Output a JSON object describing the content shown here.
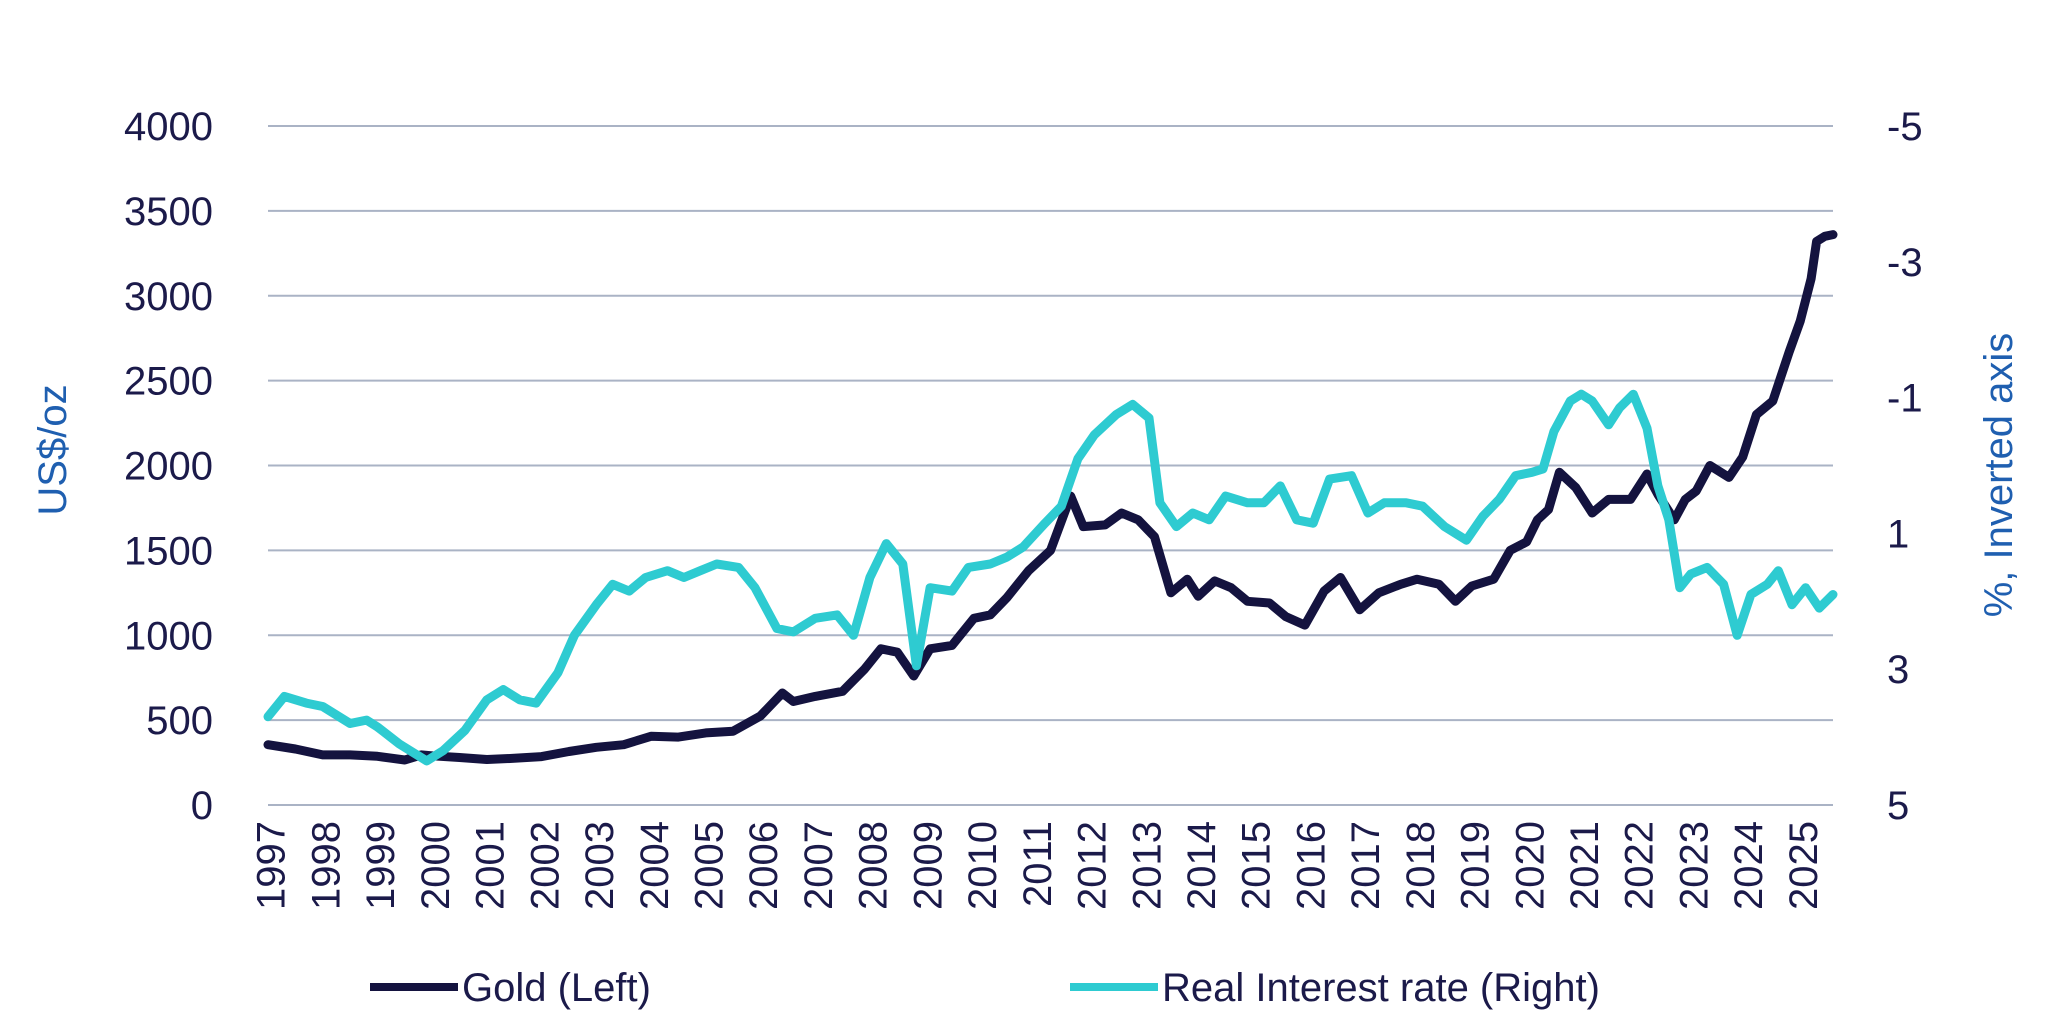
{
  "chart_data": {
    "type": "line",
    "title": "",
    "ylabel_left": "US$/oz",
    "ylabel_right": "%, Inverted axis",
    "ylim_left": [
      0,
      4000
    ],
    "yticks_left": [
      "4000",
      "3500",
      "3000",
      "2500",
      "2000",
      "1500",
      "1000",
      "500",
      "0"
    ],
    "ylim_right": [
      5,
      -5
    ],
    "yticks_right": [
      "-5",
      "-3",
      "-1",
      "1",
      "3",
      "5"
    ],
    "right_axis_inverted": true,
    "xlim": [
      1997.0,
      2025.6
    ],
    "x_tick_labels": [
      "1997",
      "1998",
      "1999",
      "2000",
      "2001",
      "2002",
      "2003",
      "2004",
      "2005",
      "2006",
      "2007",
      "2008",
      "2009",
      "2010",
      "2011",
      "2012",
      "2013",
      "2014",
      "2015",
      "2016",
      "2017",
      "2018",
      "2019",
      "2020",
      "2021",
      "2022",
      "2023",
      "2024",
      "2025"
    ],
    "grid": true,
    "legend_position": "bottom",
    "series": [
      {
        "name": "Gold (Left)",
        "axis": "left",
        "color": "#14133f",
        "points": [
          [
            1997.0,
            355
          ],
          [
            1997.5,
            330
          ],
          [
            1998.0,
            295
          ],
          [
            1998.5,
            295
          ],
          [
            1999.0,
            287
          ],
          [
            1999.5,
            265
          ],
          [
            1999.8,
            295
          ],
          [
            2000.0,
            290
          ],
          [
            2000.5,
            280
          ],
          [
            2001.0,
            268
          ],
          [
            2001.5,
            275
          ],
          [
            2002.0,
            285
          ],
          [
            2002.5,
            315
          ],
          [
            2003.0,
            340
          ],
          [
            2003.5,
            355
          ],
          [
            2004.0,
            405
          ],
          [
            2004.5,
            400
          ],
          [
            2005.0,
            425
          ],
          [
            2005.5,
            435
          ],
          [
            2006.0,
            525
          ],
          [
            2006.4,
            660
          ],
          [
            2006.6,
            610
          ],
          [
            2007.0,
            640
          ],
          [
            2007.5,
            670
          ],
          [
            2007.9,
            800
          ],
          [
            2008.2,
            920
          ],
          [
            2008.5,
            900
          ],
          [
            2008.8,
            760
          ],
          [
            2009.1,
            920
          ],
          [
            2009.5,
            940
          ],
          [
            2009.9,
            1100
          ],
          [
            2010.2,
            1120
          ],
          [
            2010.5,
            1220
          ],
          [
            2010.9,
            1380
          ],
          [
            2011.3,
            1500
          ],
          [
            2011.67,
            1820
          ],
          [
            2011.9,
            1640
          ],
          [
            2012.3,
            1650
          ],
          [
            2012.6,
            1720
          ],
          [
            2012.9,
            1680
          ],
          [
            2013.2,
            1580
          ],
          [
            2013.5,
            1250
          ],
          [
            2013.8,
            1330
          ],
          [
            2014.0,
            1230
          ],
          [
            2014.3,
            1320
          ],
          [
            2014.6,
            1280
          ],
          [
            2014.9,
            1200
          ],
          [
            2015.3,
            1190
          ],
          [
            2015.6,
            1110
          ],
          [
            2015.95,
            1060
          ],
          [
            2016.3,
            1260
          ],
          [
            2016.6,
            1340
          ],
          [
            2016.95,
            1150
          ],
          [
            2017.3,
            1250
          ],
          [
            2017.7,
            1300
          ],
          [
            2018.0,
            1330
          ],
          [
            2018.4,
            1300
          ],
          [
            2018.7,
            1200
          ],
          [
            2019.0,
            1290
          ],
          [
            2019.4,
            1330
          ],
          [
            2019.7,
            1500
          ],
          [
            2020.0,
            1550
          ],
          [
            2020.2,
            1680
          ],
          [
            2020.4,
            1740
          ],
          [
            2020.6,
            1960
          ],
          [
            2020.9,
            1870
          ],
          [
            2021.2,
            1720
          ],
          [
            2021.5,
            1800
          ],
          [
            2021.9,
            1800
          ],
          [
            2022.2,
            1950
          ],
          [
            2022.4,
            1830
          ],
          [
            2022.7,
            1680
          ],
          [
            2022.9,
            1800
          ],
          [
            2023.1,
            1850
          ],
          [
            2023.35,
            2000
          ],
          [
            2023.7,
            1930
          ],
          [
            2023.95,
            2050
          ],
          [
            2024.2,
            2300
          ],
          [
            2024.5,
            2380
          ],
          [
            2024.8,
            2670
          ],
          [
            2025.0,
            2850
          ],
          [
            2025.2,
            3100
          ],
          [
            2025.3,
            3320
          ],
          [
            2025.45,
            3350
          ],
          [
            2025.6,
            3360
          ]
        ]
      },
      {
        "name": "Real Interest rate (Right)",
        "axis": "right",
        "color": "#2ecbd1",
        "points": [
          [
            1997.0,
            3.7
          ],
          [
            1997.3,
            3.4
          ],
          [
            1997.7,
            3.5
          ],
          [
            1998.0,
            3.55
          ],
          [
            1998.5,
            3.8
          ],
          [
            1998.8,
            3.75
          ],
          [
            1999.0,
            3.85
          ],
          [
            1999.4,
            4.1
          ],
          [
            1999.9,
            4.35
          ],
          [
            2000.2,
            4.2
          ],
          [
            2000.6,
            3.9
          ],
          [
            2001.0,
            3.45
          ],
          [
            2001.3,
            3.3
          ],
          [
            2001.6,
            3.45
          ],
          [
            2001.9,
            3.5
          ],
          [
            2002.3,
            3.05
          ],
          [
            2002.6,
            2.5
          ],
          [
            2003.0,
            2.05
          ],
          [
            2003.3,
            1.75
          ],
          [
            2003.6,
            1.85
          ],
          [
            2003.9,
            1.65
          ],
          [
            2004.3,
            1.55
          ],
          [
            2004.6,
            1.65
          ],
          [
            2004.9,
            1.55
          ],
          [
            2005.2,
            1.45
          ],
          [
            2005.6,
            1.5
          ],
          [
            2005.9,
            1.8
          ],
          [
            2006.3,
            2.4
          ],
          [
            2006.6,
            2.45
          ],
          [
            2007.0,
            2.25
          ],
          [
            2007.4,
            2.2
          ],
          [
            2007.7,
            2.5
          ],
          [
            2008.0,
            1.65
          ],
          [
            2008.3,
            1.15
          ],
          [
            2008.6,
            1.45
          ],
          [
            2008.85,
            2.95
          ],
          [
            2009.1,
            1.8
          ],
          [
            2009.5,
            1.85
          ],
          [
            2009.8,
            1.5
          ],
          [
            2010.2,
            1.45
          ],
          [
            2010.5,
            1.35
          ],
          [
            2010.8,
            1.2
          ],
          [
            2011.2,
            0.85
          ],
          [
            2011.5,
            0.6
          ],
          [
            2011.8,
            -0.1
          ],
          [
            2012.1,
            -0.45
          ],
          [
            2012.5,
            -0.75
          ],
          [
            2012.8,
            -0.9
          ],
          [
            2013.1,
            -0.7
          ],
          [
            2013.3,
            0.55
          ],
          [
            2013.6,
            0.9
          ],
          [
            2013.9,
            0.7
          ],
          [
            2014.2,
            0.8
          ],
          [
            2014.5,
            0.45
          ],
          [
            2014.9,
            0.55
          ],
          [
            2015.2,
            0.55
          ],
          [
            2015.5,
            0.3
          ],
          [
            2015.8,
            0.8
          ],
          [
            2016.1,
            0.85
          ],
          [
            2016.4,
            0.2
          ],
          [
            2016.8,
            0.15
          ],
          [
            2017.1,
            0.7
          ],
          [
            2017.4,
            0.55
          ],
          [
            2017.8,
            0.55
          ],
          [
            2018.1,
            0.6
          ],
          [
            2018.5,
            0.9
          ],
          [
            2018.9,
            1.1
          ],
          [
            2019.2,
            0.75
          ],
          [
            2019.5,
            0.5
          ],
          [
            2019.8,
            0.15
          ],
          [
            2020.1,
            0.1
          ],
          [
            2020.3,
            0.05
          ],
          [
            2020.5,
            -0.5
          ],
          [
            2020.8,
            -0.95
          ],
          [
            2021.0,
            -1.05
          ],
          [
            2021.2,
            -0.95
          ],
          [
            2021.5,
            -0.6
          ],
          [
            2021.7,
            -0.85
          ],
          [
            2021.95,
            -1.05
          ],
          [
            2022.2,
            -0.55
          ],
          [
            2022.4,
            0.3
          ],
          [
            2022.6,
            0.8
          ],
          [
            2022.8,
            1.8
          ],
          [
            2023.0,
            1.6
          ],
          [
            2023.3,
            1.5
          ],
          [
            2023.6,
            1.75
          ],
          [
            2023.85,
            2.5
          ],
          [
            2024.1,
            1.9
          ],
          [
            2024.4,
            1.75
          ],
          [
            2024.6,
            1.55
          ],
          [
            2024.85,
            2.05
          ],
          [
            2025.1,
            1.8
          ],
          [
            2025.35,
            2.1
          ],
          [
            2025.6,
            1.9
          ]
        ]
      }
    ]
  }
}
